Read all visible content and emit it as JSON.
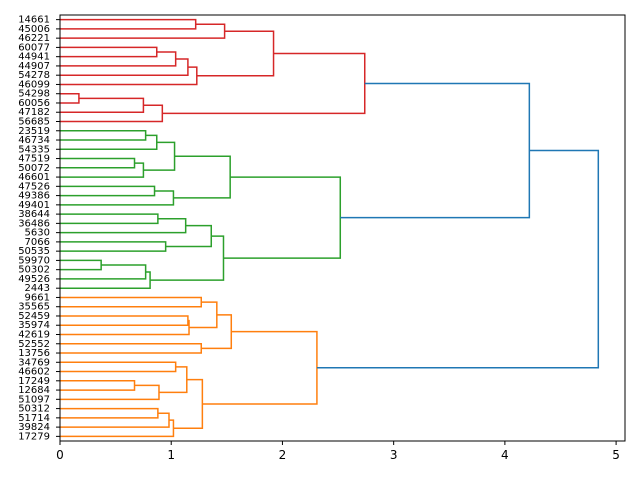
{
  "chart_data": {
    "type": "dendrogram",
    "orientation": "horizontal",
    "xlim": [
      0,
      5.08
    ],
    "x_ticks": [
      "0",
      "1",
      "2",
      "3",
      "4",
      "5"
    ],
    "leaves": [
      "14661",
      "45006",
      "46221",
      "60077",
      "44941",
      "44907",
      "54278",
      "46099",
      "54298",
      "60056",
      "47182",
      "56685",
      "23519",
      "46734",
      "54335",
      "47519",
      "50072",
      "46601",
      "47526",
      "49386",
      "49401",
      "38644",
      "36486",
      "5630",
      "7066",
      "50535",
      "59970",
      "50302",
      "49526",
      "2443",
      "9661",
      "35565",
      "52459",
      "35974",
      "42619",
      "52552",
      "13756",
      "34769",
      "46602",
      "17249",
      "12684",
      "51097",
      "50312",
      "51714",
      "39824",
      "17279"
    ],
    "colors": {
      "red": "#d62728",
      "green": "#2ca02c",
      "orange": "#ff7f0e",
      "blue": "#1f77b4"
    },
    "links": [
      {
        "color": "red",
        "left": 0,
        "right": 1,
        "height": 1.22
      },
      {
        "color": "red",
        "left": "L0",
        "right": 2,
        "height": 1.48
      },
      {
        "color": "red",
        "left": 3,
        "right": 4,
        "height": 0.87
      },
      {
        "color": "red",
        "left": "L2",
        "right": 5,
        "height": 1.04
      },
      {
        "color": "red",
        "left": "L3",
        "right": 6,
        "height": 1.15
      },
      {
        "color": "red",
        "left": "L4",
        "right": 7,
        "height": 1.23
      },
      {
        "color": "red",
        "left": "L1",
        "right": "L5",
        "height": 1.92
      },
      {
        "color": "red",
        "left": 8,
        "right": 9,
        "height": 0.17
      },
      {
        "color": "red",
        "left": "L7",
        "right": 10,
        "height": 0.75
      },
      {
        "color": "red",
        "left": "L8",
        "right": 11,
        "height": 0.92
      },
      {
        "color": "red",
        "left": "L6",
        "right": "L9",
        "height": 2.74
      },
      {
        "color": "green",
        "left": 12,
        "right": 13,
        "height": 0.77
      },
      {
        "color": "green",
        "left": "L11",
        "right": 14,
        "height": 0.87
      },
      {
        "color": "green",
        "left": 15,
        "right": 16,
        "height": 0.67
      },
      {
        "color": "green",
        "left": "L13",
        "right": 17,
        "height": 0.75
      },
      {
        "color": "green",
        "left": "L12",
        "right": "L14",
        "height": 1.03
      },
      {
        "color": "green",
        "left": 18,
        "right": 19,
        "height": 0.85
      },
      {
        "color": "green",
        "left": "L16",
        "right": 20,
        "height": 1.02
      },
      {
        "color": "green",
        "left": "L15",
        "right": "L17",
        "height": 1.53
      },
      {
        "color": "green",
        "left": 21,
        "right": 22,
        "height": 0.88
      },
      {
        "color": "green",
        "left": "L19",
        "right": 23,
        "height": 1.13
      },
      {
        "color": "green",
        "left": 24,
        "right": 25,
        "height": 0.95
      },
      {
        "color": "green",
        "left": "L20",
        "right": "L21",
        "height": 1.36
      },
      {
        "color": "green",
        "left": 26,
        "right": 27,
        "height": 0.37
      },
      {
        "color": "green",
        "left": "L23",
        "right": 28,
        "height": 0.77
      },
      {
        "color": "green",
        "left": "L24",
        "right": 29,
        "height": 0.81
      },
      {
        "color": "green",
        "left": "L22",
        "right": "L25",
        "height": 1.47
      },
      {
        "color": "green",
        "left": "L18",
        "right": "L26",
        "height": 2.52
      },
      {
        "color": "orange",
        "left": 30,
        "right": 31,
        "height": 1.27
      },
      {
        "color": "orange",
        "left": 32,
        "right": 33,
        "height": 1.15
      },
      {
        "color": "orange",
        "left": "L29",
        "right": 34,
        "height": 1.16
      },
      {
        "color": "orange",
        "left": "L28",
        "right": "L30",
        "height": 1.41
      },
      {
        "color": "orange",
        "left": 35,
        "right": 36,
        "height": 1.27
      },
      {
        "color": "orange",
        "left": "L31",
        "right": "L32",
        "height": 1.54
      },
      {
        "color": "orange",
        "left": 37,
        "right": 38,
        "height": 1.04
      },
      {
        "color": "orange",
        "left": 39,
        "right": 40,
        "height": 0.67
      },
      {
        "color": "orange",
        "left": "L35",
        "right": 41,
        "height": 0.89
      },
      {
        "color": "orange",
        "left": "L34",
        "right": "L36",
        "height": 1.14
      },
      {
        "color": "orange",
        "left": 42,
        "right": 43,
        "height": 0.88
      },
      {
        "color": "orange",
        "left": "L38",
        "right": 44,
        "height": 0.98
      },
      {
        "color": "orange",
        "left": "L39",
        "right": 45,
        "height": 1.02
      },
      {
        "color": "orange",
        "left": "L37",
        "right": "L40",
        "height": 1.28
      },
      {
        "color": "orange",
        "left": "L33",
        "right": "L41",
        "height": 2.31
      },
      {
        "color": "blue",
        "left": "L10",
        "right": "L27",
        "height": 4.22
      },
      {
        "color": "blue",
        "left": "L43",
        "right": "L42",
        "height": 4.84
      }
    ]
  }
}
